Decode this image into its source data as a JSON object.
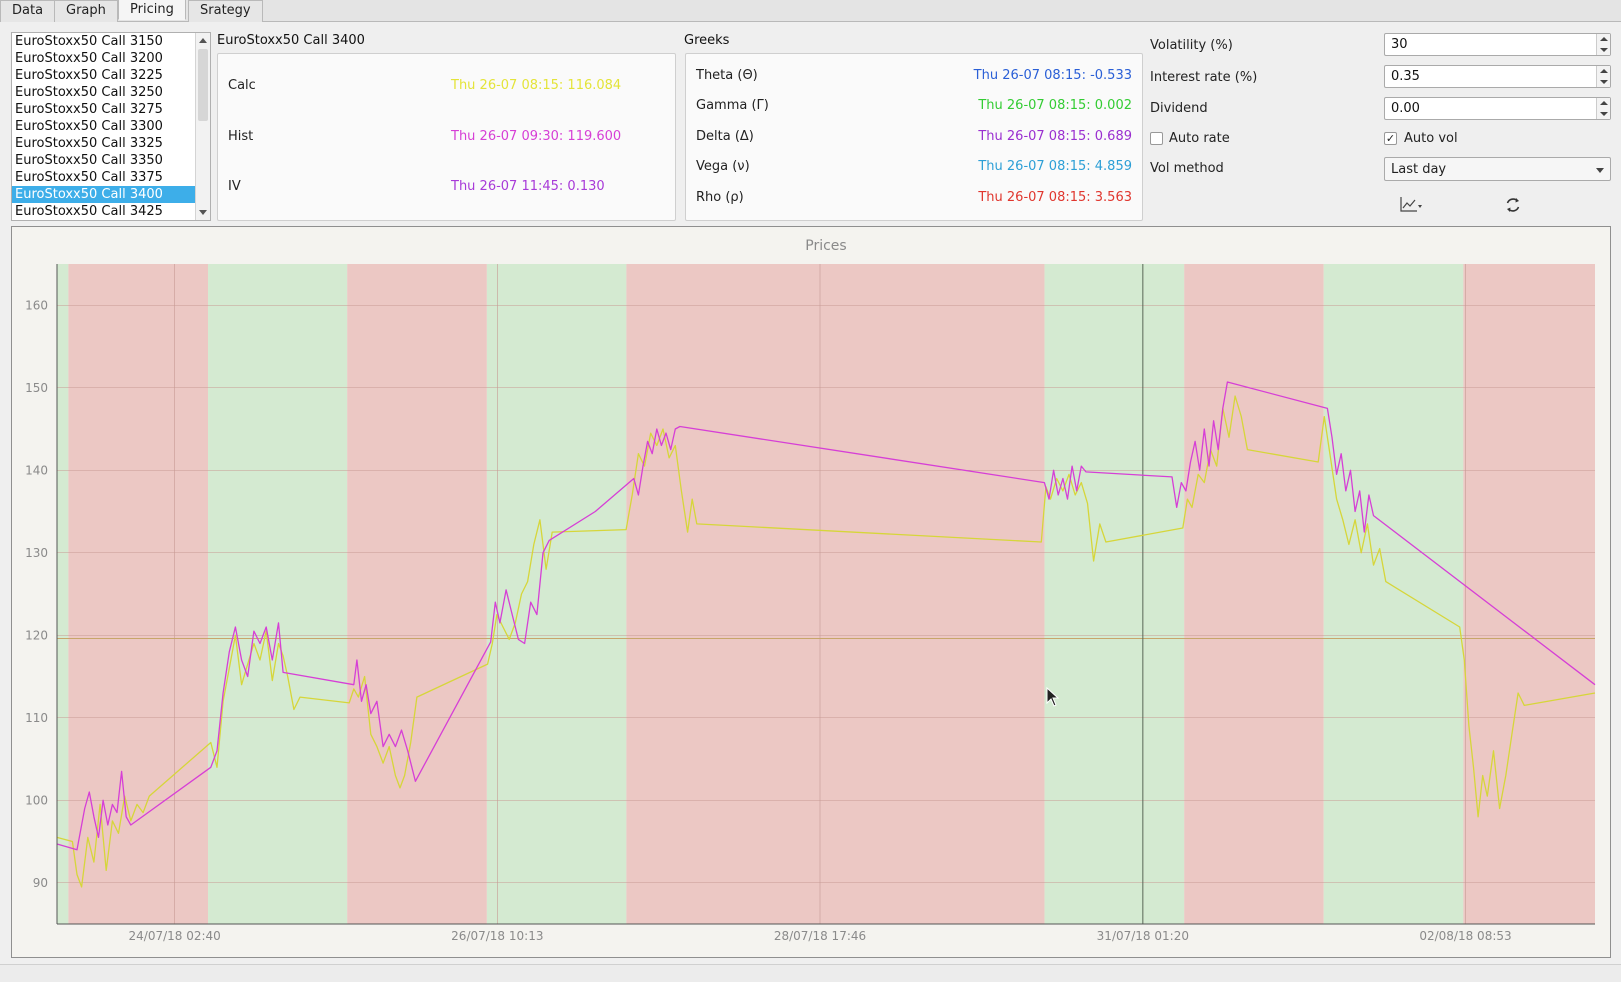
{
  "tabs": [
    {
      "label": "Data"
    },
    {
      "label": "Graph"
    },
    {
      "label": "Pricing"
    },
    {
      "label": "Srategy"
    }
  ],
  "instruments": [
    "EuroStoxx50 Call 3150",
    "EuroStoxx50 Call 3200",
    "EuroStoxx50 Call 3225",
    "EuroStoxx50 Call 3250",
    "EuroStoxx50 Call 3275",
    "EuroStoxx50 Call 3300",
    "EuroStoxx50 Call 3325",
    "EuroStoxx50 Call 3350",
    "EuroStoxx50 Call 3375",
    "EuroStoxx50 Call 3400",
    "EuroStoxx50 Call 3425"
  ],
  "selected_instrument_index": 9,
  "pricing": {
    "title": "EuroStoxx50 Call 3400",
    "rows": [
      {
        "label": "Calc",
        "value": "Thu 26-07 08:15: 116.084",
        "color": "#e4e43a"
      },
      {
        "label": "Hist",
        "value": "Thu 26-07 09:30: 119.600",
        "color": "#d63fd6"
      },
      {
        "label": "IV",
        "value": "Thu 26-07 11:45: 0.130",
        "color": "#a83ad8"
      }
    ]
  },
  "greeks": {
    "title": "Greeks",
    "rows": [
      {
        "label": "Theta (Θ)",
        "value": "Thu 26-07 08:15: -0.533",
        "color": "#2a5fd6"
      },
      {
        "label": "Gamma (Γ)",
        "value": "Thu 26-07 08:15: 0.002",
        "color": "#33cc33"
      },
      {
        "label": "Delta (Δ)",
        "value": "Thu 26-07 08:15: 0.689",
        "color": "#9a2fd0"
      },
      {
        "label": "Vega (ν)",
        "value": "Thu 26-07 08:15: 4.859",
        "color": "#2d9fd6"
      },
      {
        "label": "Rho (ρ)",
        "value": "Thu 26-07 08:15: 3.563",
        "color": "#e0362e"
      }
    ]
  },
  "params": {
    "volatility_label": "Volatility (%)",
    "volatility_value": "30",
    "interest_label": "Interest rate (%)",
    "interest_value": "0.35",
    "dividend_label": "Dividend",
    "dividend_value": "0.00",
    "auto_rate_label": "Auto rate",
    "auto_rate_checked": false,
    "auto_vol_label": "Auto vol",
    "auto_vol_checked": true,
    "auto_vol_mark": "✓",
    "vol_method_label": "Vol method",
    "vol_method_value": "Last day"
  },
  "toolbar_icons": [
    "chart-menu-icon",
    "refresh-icon"
  ],
  "chart_data": {
    "type": "line",
    "title": "Prices",
    "ylim": [
      85,
      165
    ],
    "yticks": [
      90,
      100,
      110,
      120,
      130,
      140,
      150,
      160
    ],
    "xticks": [
      "24/07/18 02:40",
      "26/07/18 10:13",
      "28/07/18 17:46",
      "31/07/18 01:20",
      "02/08/18 08:53"
    ],
    "xtick_positions": [
      0.0765,
      0.2863,
      0.4961,
      0.706,
      0.9158
    ],
    "horizontal_reference": 119.6,
    "vertical_reference": 0.706,
    "bands": [
      {
        "from": 0.0,
        "to": 0.0074,
        "color": "green"
      },
      {
        "from": 0.0074,
        "to": 0.0982,
        "color": "red"
      },
      {
        "from": 0.0982,
        "to": 0.1887,
        "color": "green"
      },
      {
        "from": 0.1887,
        "to": 0.2795,
        "color": "red"
      },
      {
        "from": 0.2795,
        "to": 0.3702,
        "color": "green"
      },
      {
        "from": 0.3702,
        "to": 0.6421,
        "color": "red"
      },
      {
        "from": 0.6421,
        "to": 0.7329,
        "color": "green"
      },
      {
        "from": 0.7329,
        "to": 0.8236,
        "color": "red"
      },
      {
        "from": 0.8236,
        "to": 0.9144,
        "color": "green"
      },
      {
        "from": 0.9144,
        "to": 1.0,
        "color": "red"
      }
    ],
    "series": [
      {
        "color": "#d63fd6",
        "points": [
          [
            0.0,
            94.7
          ],
          [
            0.013,
            94.0
          ],
          [
            0.018,
            99.0
          ],
          [
            0.021,
            101.0
          ],
          [
            0.024,
            98.0
          ],
          [
            0.027,
            95.5
          ],
          [
            0.03,
            100.0
          ],
          [
            0.033,
            97.0
          ],
          [
            0.036,
            99.5
          ],
          [
            0.039,
            98.5
          ],
          [
            0.042,
            103.5
          ],
          [
            0.045,
            98.0
          ],
          [
            0.048,
            97.0
          ],
          [
            0.1,
            104.0
          ],
          [
            0.104,
            106.0
          ],
          [
            0.108,
            113.0
          ],
          [
            0.112,
            118.0
          ],
          [
            0.116,
            121.0
          ],
          [
            0.12,
            117.0
          ],
          [
            0.124,
            115.0
          ],
          [
            0.128,
            120.5
          ],
          [
            0.132,
            119.0
          ],
          [
            0.136,
            121.0
          ],
          [
            0.14,
            117.0
          ],
          [
            0.144,
            121.5
          ],
          [
            0.147,
            115.5
          ],
          [
            0.193,
            114.0
          ],
          [
            0.195,
            117.0
          ],
          [
            0.198,
            112.0
          ],
          [
            0.201,
            114.0
          ],
          [
            0.204,
            110.5
          ],
          [
            0.208,
            112.0
          ],
          [
            0.212,
            106.5
          ],
          [
            0.216,
            108.0
          ],
          [
            0.22,
            106.5
          ],
          [
            0.224,
            108.5
          ],
          [
            0.228,
            106.0
          ],
          [
            0.233,
            102.3
          ],
          [
            0.282,
            119.2
          ],
          [
            0.285,
            124.0
          ],
          [
            0.288,
            121.5
          ],
          [
            0.292,
            125.5
          ],
          [
            0.296,
            122.5
          ],
          [
            0.3,
            119.5
          ],
          [
            0.304,
            119.0
          ],
          [
            0.308,
            124.0
          ],
          [
            0.312,
            122.5
          ],
          [
            0.316,
            130.0
          ],
          [
            0.32,
            131.5
          ],
          [
            0.35,
            135.0
          ],
          [
            0.375,
            139.0
          ],
          [
            0.378,
            137.0
          ],
          [
            0.381,
            140.5
          ],
          [
            0.384,
            143.5
          ],
          [
            0.387,
            142.0
          ],
          [
            0.39,
            145.0
          ],
          [
            0.393,
            143.0
          ],
          [
            0.396,
            144.5
          ],
          [
            0.399,
            142.5
          ],
          [
            0.402,
            145.0
          ],
          [
            0.405,
            145.3
          ],
          [
            0.642,
            138.5
          ],
          [
            0.645,
            136.5
          ],
          [
            0.648,
            140.0
          ],
          [
            0.651,
            137.0
          ],
          [
            0.654,
            139.0
          ],
          [
            0.657,
            136.5
          ],
          [
            0.66,
            140.5
          ],
          [
            0.663,
            137.5
          ],
          [
            0.666,
            140.5
          ],
          [
            0.669,
            139.8
          ],
          [
            0.725,
            139.2
          ],
          [
            0.728,
            135.5
          ],
          [
            0.731,
            138.5
          ],
          [
            0.734,
            137.5
          ],
          [
            0.737,
            141.0
          ],
          [
            0.74,
            143.5
          ],
          [
            0.743,
            140.0
          ],
          [
            0.746,
            145.0
          ],
          [
            0.749,
            140.5
          ],
          [
            0.752,
            146.0
          ],
          [
            0.755,
            142.5
          ],
          [
            0.758,
            147.5
          ],
          [
            0.761,
            150.7
          ],
          [
            0.826,
            147.5
          ],
          [
            0.829,
            144.0
          ],
          [
            0.832,
            139.5
          ],
          [
            0.835,
            142.0
          ],
          [
            0.838,
            137.5
          ],
          [
            0.841,
            140.0
          ],
          [
            0.844,
            135.0
          ],
          [
            0.847,
            137.5
          ],
          [
            0.85,
            132.5
          ],
          [
            0.853,
            137.0
          ],
          [
            0.856,
            134.5
          ],
          [
            1.0,
            114.0
          ]
        ]
      },
      {
        "color": "#d6d63a",
        "points": [
          [
            0.0,
            95.5
          ],
          [
            0.01,
            95.0
          ],
          [
            0.013,
            91.0
          ],
          [
            0.016,
            89.5
          ],
          [
            0.02,
            95.5
          ],
          [
            0.024,
            92.5
          ],
          [
            0.028,
            99.5
          ],
          [
            0.032,
            91.5
          ],
          [
            0.036,
            97.5
          ],
          [
            0.04,
            96.0
          ],
          [
            0.044,
            100.5
          ],
          [
            0.048,
            97.5
          ],
          [
            0.052,
            99.5
          ],
          [
            0.056,
            98.5
          ],
          [
            0.06,
            100.5
          ],
          [
            0.1,
            107.0
          ],
          [
            0.104,
            104.0
          ],
          [
            0.108,
            112.0
          ],
          [
            0.112,
            116.0
          ],
          [
            0.116,
            120.0
          ],
          [
            0.12,
            114.0
          ],
          [
            0.124,
            116.5
          ],
          [
            0.128,
            119.0
          ],
          [
            0.132,
            117.0
          ],
          [
            0.136,
            120.5
          ],
          [
            0.14,
            114.5
          ],
          [
            0.144,
            119.0
          ],
          [
            0.147,
            117.5
          ],
          [
            0.15,
            115.0
          ],
          [
            0.154,
            111.0
          ],
          [
            0.158,
            112.5
          ],
          [
            0.19,
            111.8
          ],
          [
            0.193,
            113.5
          ],
          [
            0.196,
            112.5
          ],
          [
            0.2,
            115.0
          ],
          [
            0.204,
            108.0
          ],
          [
            0.208,
            106.5
          ],
          [
            0.212,
            104.5
          ],
          [
            0.216,
            106.5
          ],
          [
            0.22,
            103.0
          ],
          [
            0.223,
            101.5
          ],
          [
            0.226,
            103.0
          ],
          [
            0.23,
            107.0
          ],
          [
            0.234,
            112.5
          ],
          [
            0.28,
            116.5
          ],
          [
            0.283,
            119.0
          ],
          [
            0.286,
            122.5
          ],
          [
            0.29,
            121.0
          ],
          [
            0.294,
            119.5
          ],
          [
            0.298,
            121.5
          ],
          [
            0.302,
            125.0
          ],
          [
            0.306,
            126.5
          ],
          [
            0.31,
            131.0
          ],
          [
            0.314,
            134.0
          ],
          [
            0.318,
            128.0
          ],
          [
            0.322,
            132.5
          ],
          [
            0.37,
            132.8
          ],
          [
            0.374,
            137.0
          ],
          [
            0.378,
            142.0
          ],
          [
            0.382,
            140.5
          ],
          [
            0.386,
            144.5
          ],
          [
            0.39,
            143.0
          ],
          [
            0.394,
            145.0
          ],
          [
            0.398,
            141.5
          ],
          [
            0.402,
            143.0
          ],
          [
            0.406,
            137.5
          ],
          [
            0.41,
            132.5
          ],
          [
            0.413,
            136.5
          ],
          [
            0.416,
            133.5
          ],
          [
            0.64,
            131.3
          ],
          [
            0.643,
            138.0
          ],
          [
            0.646,
            136.5
          ],
          [
            0.65,
            139.0
          ],
          [
            0.654,
            137.5
          ],
          [
            0.658,
            139.5
          ],
          [
            0.662,
            137.0
          ],
          [
            0.666,
            138.5
          ],
          [
            0.67,
            136.0
          ],
          [
            0.674,
            129.0
          ],
          [
            0.678,
            133.5
          ],
          [
            0.682,
            131.3
          ],
          [
            0.732,
            133.0
          ],
          [
            0.735,
            136.5
          ],
          [
            0.738,
            135.5
          ],
          [
            0.742,
            139.5
          ],
          [
            0.746,
            138.5
          ],
          [
            0.75,
            142.5
          ],
          [
            0.754,
            140.5
          ],
          [
            0.758,
            147.5
          ],
          [
            0.762,
            144.0
          ],
          [
            0.766,
            149.0
          ],
          [
            0.77,
            146.5
          ],
          [
            0.774,
            142.5
          ],
          [
            0.82,
            141.0
          ],
          [
            0.824,
            146.5
          ],
          [
            0.828,
            141.5
          ],
          [
            0.832,
            136.5
          ],
          [
            0.836,
            134.0
          ],
          [
            0.84,
            131.0
          ],
          [
            0.844,
            134.0
          ],
          [
            0.848,
            130.0
          ],
          [
            0.852,
            133.5
          ],
          [
            0.856,
            128.5
          ],
          [
            0.86,
            130.5
          ],
          [
            0.864,
            126.5
          ],
          [
            0.912,
            121.0
          ],
          [
            0.915,
            117.0
          ],
          [
            0.918,
            109.0
          ],
          [
            0.921,
            104.0
          ],
          [
            0.924,
            98.0
          ],
          [
            0.927,
            103.0
          ],
          [
            0.93,
            100.5
          ],
          [
            0.934,
            106.0
          ],
          [
            0.938,
            99.0
          ],
          [
            0.942,
            103.0
          ],
          [
            0.946,
            108.0
          ],
          [
            0.95,
            113.0
          ],
          [
            0.954,
            111.5
          ],
          [
            1.0,
            113.0
          ]
        ]
      }
    ]
  }
}
